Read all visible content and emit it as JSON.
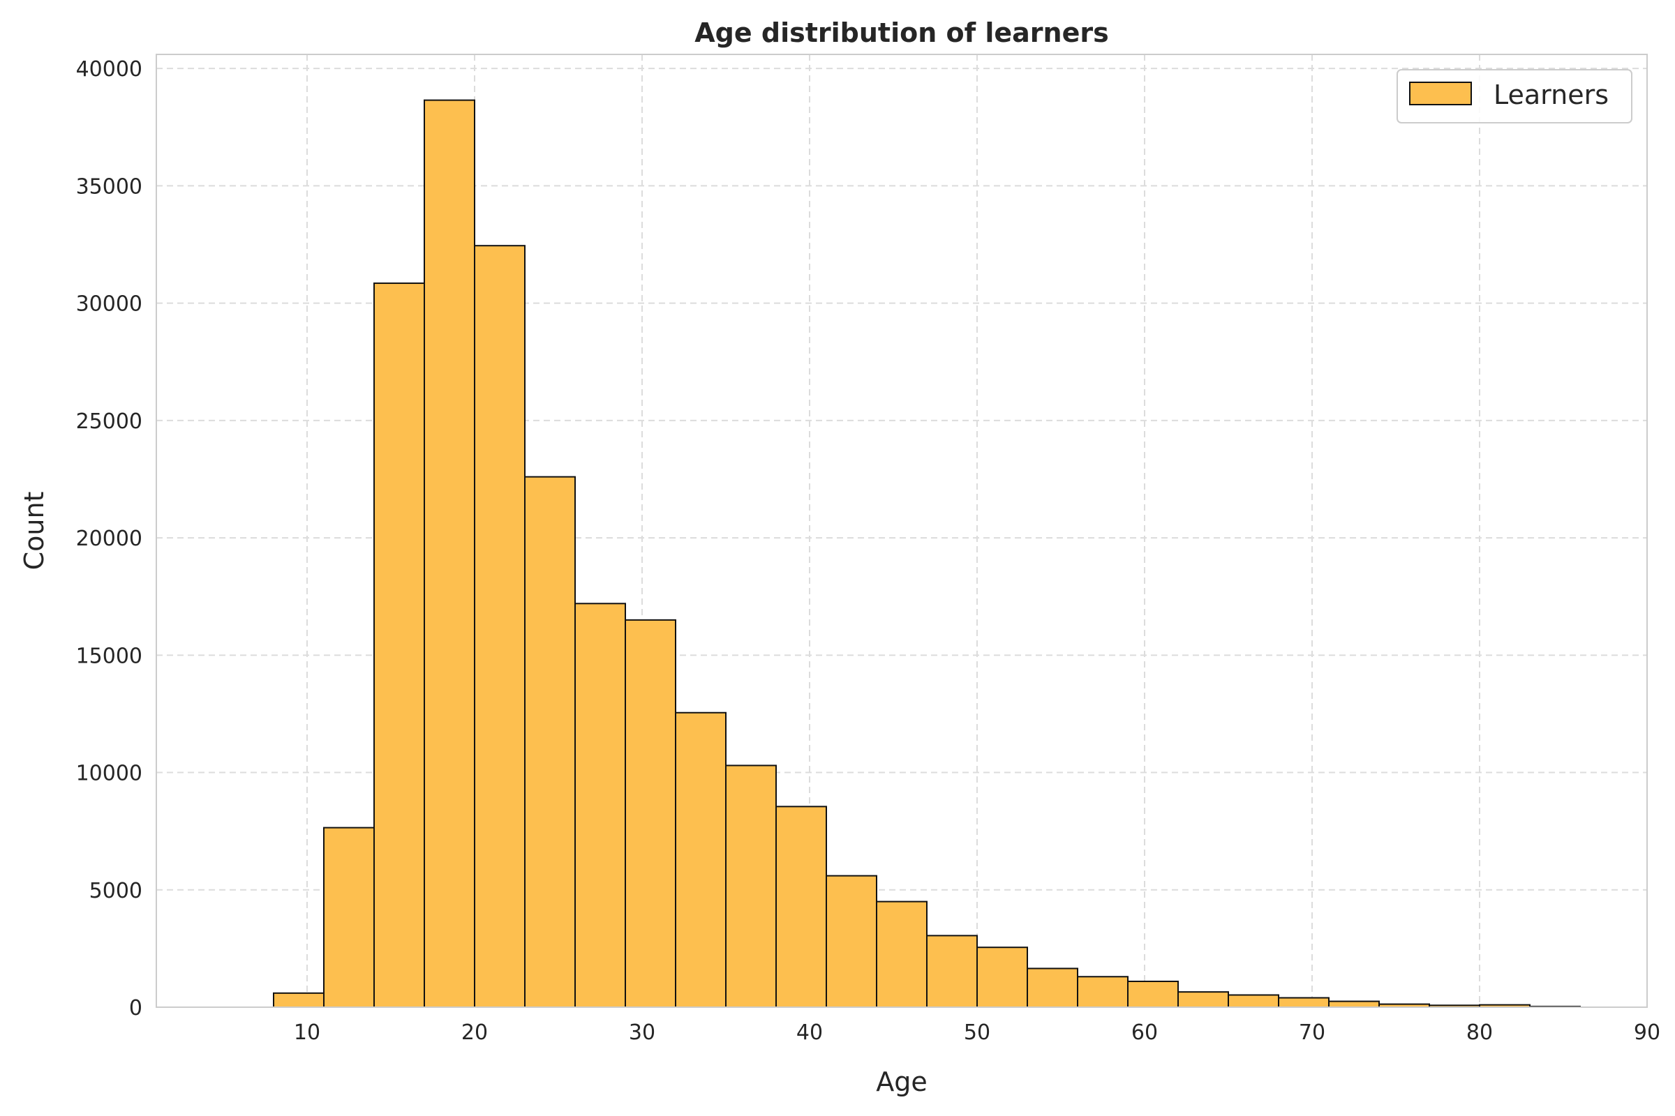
{
  "chart_data": {
    "type": "bar",
    "title": "Age distribution of learners",
    "xlabel": "Age",
    "ylabel": "Count",
    "xlim": [
      1,
      90
    ],
    "ylim": [
      0,
      40600
    ],
    "xticks": [
      10,
      20,
      30,
      40,
      50,
      60,
      70,
      80,
      90
    ],
    "yticks": [
      0,
      5000,
      10000,
      15000,
      20000,
      25000,
      30000,
      35000,
      40000
    ],
    "grid": true,
    "legend_position": "top-right",
    "colors": {
      "bar_fill": "#FDBF4F",
      "bar_edge": "#111111",
      "grid": "#dcdcdc",
      "spine": "#cccccc"
    },
    "series": [
      {
        "name": "Learners",
        "bin_edges": [
          8,
          11,
          14,
          17,
          20,
          23,
          26,
          29,
          32,
          35,
          38,
          41,
          44,
          47,
          50,
          53,
          56,
          59,
          62,
          65,
          68,
          71,
          74,
          77,
          80,
          83,
          86
        ],
        "values": [
          600,
          7650,
          30850,
          38650,
          32450,
          22600,
          17200,
          16500,
          12550,
          10300,
          8550,
          5600,
          4500,
          3050,
          2550,
          1650,
          1300,
          1100,
          650,
          520,
          400,
          250,
          130,
          80,
          100,
          30
        ]
      }
    ]
  }
}
